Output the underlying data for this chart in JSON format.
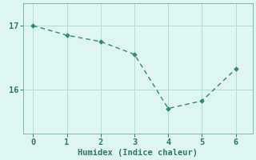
{
  "x": [
    0,
    1,
    2,
    3,
    4,
    5,
    6
  ],
  "y": [
    17.0,
    16.85,
    16.75,
    16.55,
    15.7,
    15.82,
    16.32
  ],
  "xlabel": "Humidex (Indice chaleur)",
  "line_color": "#2e8b73",
  "bg_color": "#dff5f0",
  "grid_color": "#b0ddd4",
  "spine_color": "#7abaaa",
  "tick_color": "#2e7a6a",
  "label_color": "#2e7a6a",
  "yticks": [
    16,
    17
  ],
  "xticks": [
    0,
    1,
    2,
    3,
    4,
    5,
    6
  ],
  "ylim": [
    15.3,
    17.35
  ],
  "xlim": [
    -0.3,
    6.5
  ],
  "marker": "D",
  "markersize": 2.8,
  "linewidth": 1.0,
  "xlabel_fontsize": 7.5,
  "tick_fontsize": 7.5
}
